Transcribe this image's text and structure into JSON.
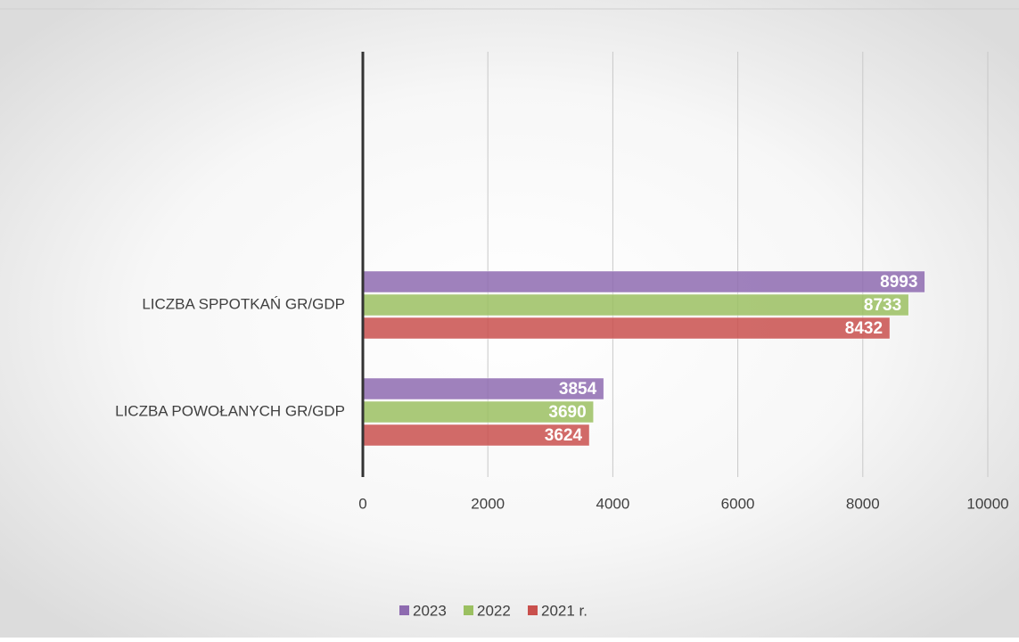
{
  "chart_data": {
    "type": "hbar",
    "categories": [
      "LICZBA SPPOTKAŃ GR/GDP",
      "LICZBA POWOŁANYCH GR/GDP"
    ],
    "series": [
      {
        "name": "2023",
        "color": "#8e6bb0",
        "values": [
          8993,
          3854
        ]
      },
      {
        "name": "2022",
        "color": "#9bc061",
        "values": [
          8733,
          3690
        ]
      },
      {
        "name": "2021 r.",
        "color": "#c9504d",
        "values": [
          8432,
          3624
        ]
      }
    ],
    "xlim": [
      0,
      10000
    ],
    "xticks": [
      0,
      2000,
      4000,
      6000,
      8000,
      10000
    ],
    "grid": true,
    "legend": "bottom"
  }
}
